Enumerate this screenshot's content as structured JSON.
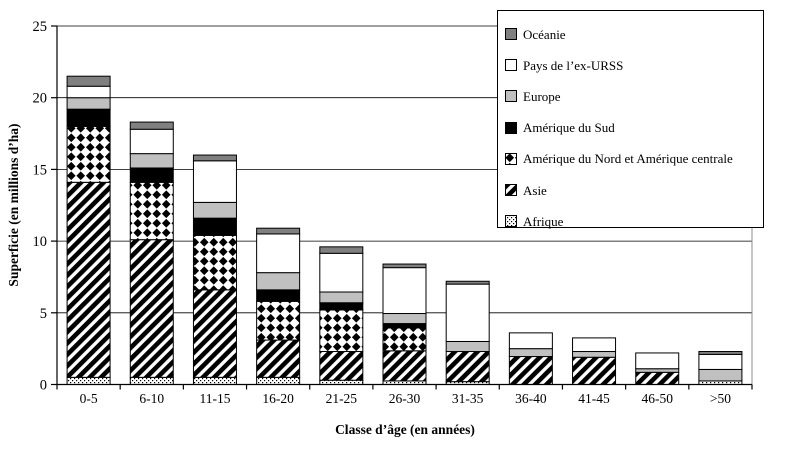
{
  "y_axis": {
    "title": "Superficie (en millions d’ha)",
    "tick_labels": [
      "0",
      "5",
      "10",
      "15",
      "20",
      "25"
    ]
  },
  "x_axis": {
    "title": "Classe d’âge (en années)"
  },
  "legend": {
    "items": [
      {
        "label": "Océanie",
        "fill": "solid",
        "color": "#808080"
      },
      {
        "label": "Pays de l’ex-URSS",
        "fill": "solid",
        "color": "#ffffff"
      },
      {
        "label": "Europe",
        "fill": "solid",
        "color": "#c0c0c0"
      },
      {
        "label": "Amérique du Sud",
        "fill": "solid",
        "color": "#000000"
      },
      {
        "label": "Amérique du Nord et Amérique centrale",
        "fill": "diamonds",
        "color": "#000000"
      },
      {
        "label": "Asie",
        "fill": "stripes",
        "color": "#000000"
      },
      {
        "label": "Afrique",
        "fill": "dots",
        "color": "#000000"
      }
    ]
  },
  "chart_data": {
    "type": "bar",
    "stacked": true,
    "title": "",
    "xlabel": "Classe d’âge (en années)",
    "ylabel": "Superficie (en millions d’ha)",
    "ylim": [
      0,
      25
    ],
    "yticks": [
      0,
      5,
      10,
      15,
      20,
      25
    ],
    "grid": true,
    "legend_position": "top-right",
    "legend_order_top_to_bottom": [
      "Océanie",
      "Pays de l’ex-URSS",
      "Europe",
      "Amérique du Sud",
      "Amérique du Nord et Amérique centrale",
      "Asie",
      "Afrique"
    ],
    "categories": [
      "0-5",
      "6-10",
      "11-15",
      "16-20",
      "21-25",
      "26-30",
      "31-35",
      "36-40",
      "41-45",
      "46-50",
      ">50"
    ],
    "series": [
      {
        "name": "Afrique",
        "fill": "dots",
        "color": "#000000",
        "values": [
          0.5,
          0.5,
          0.5,
          0.5,
          0.3,
          0.25,
          0.2,
          0,
          0,
          0,
          0.25
        ]
      },
      {
        "name": "Asie",
        "fill": "stripes",
        "color": "#000000",
        "values": [
          13.6,
          9.6,
          6.1,
          2.6,
          2.0,
          2.1,
          2.1,
          1.95,
          1.9,
          0.85,
          0
        ]
      },
      {
        "name": "Amérique du Nord et Amérique centrale",
        "fill": "diamonds",
        "color": "#000000",
        "values": [
          3.9,
          4.0,
          3.8,
          2.7,
          2.9,
          1.6,
          0,
          0,
          0,
          0,
          0
        ]
      },
      {
        "name": "Amérique du Sud",
        "fill": "solid",
        "color": "#000000",
        "values": [
          1.2,
          1.0,
          1.2,
          0.8,
          0.5,
          0.3,
          0,
          0,
          0,
          0,
          0
        ]
      },
      {
        "name": "Europe",
        "fill": "solid",
        "color": "#c0c0c0",
        "values": [
          0.8,
          1.0,
          1.1,
          1.2,
          0.75,
          0.7,
          0.7,
          0.55,
          0.4,
          0.25,
          0.8
        ]
      },
      {
        "name": "Pays de l’ex-URSS",
        "fill": "solid",
        "color": "#ffffff",
        "values": [
          0.8,
          1.7,
          2.9,
          2.7,
          2.7,
          3.2,
          4.0,
          1.1,
          0.95,
          1.1,
          1.05
        ]
      },
      {
        "name": "Océanie",
        "fill": "solid",
        "color": "#808080",
        "values": [
          0.7,
          0.5,
          0.4,
          0.4,
          0.45,
          0.25,
          0.2,
          0,
          0,
          0,
          0.2
        ]
      }
    ],
    "totals": [
      21.5,
      18.3,
      16.0,
      10.9,
      9.6,
      8.4,
      7.2,
      3.6,
      3.25,
      2.2,
      2.3
    ]
  }
}
